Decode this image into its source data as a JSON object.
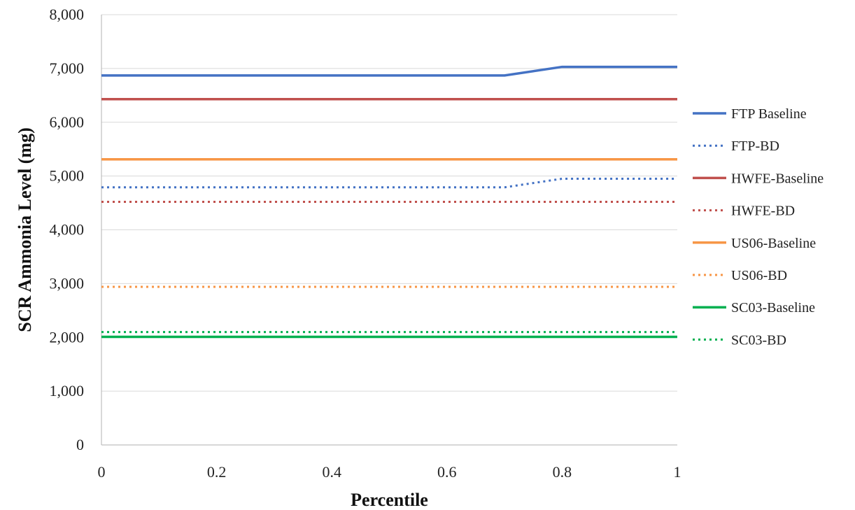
{
  "chart_data": {
    "type": "line",
    "title": "",
    "xlabel": "Percentile",
    "ylabel": "SCR Ammonia Level (mg)",
    "xlim": [
      0,
      1
    ],
    "ylim": [
      0,
      8000
    ],
    "x_ticks": [
      "0",
      "0.2",
      "0.4",
      "0.6",
      "0.8",
      "1"
    ],
    "y_ticks": [
      "0",
      "1,000",
      "2,000",
      "3,000",
      "4,000",
      "5,000",
      "6,000",
      "7,000",
      "8,000"
    ],
    "grid": "horizontal",
    "legend_position": "right",
    "series": [
      {
        "name": "FTP Baseline",
        "color": "#4472c4",
        "style": "solid",
        "x": [
          0,
          0.7,
          0.8,
          1
        ],
        "y": [
          6870,
          6870,
          7030,
          7030
        ]
      },
      {
        "name": "FTP-BD",
        "color": "#4472c4",
        "style": "dotted",
        "x": [
          0,
          0.7,
          0.8,
          1
        ],
        "y": [
          4790,
          4790,
          4950,
          4950
        ]
      },
      {
        "name": "HWFE-Baseline",
        "color": "#c0504d",
        "style": "solid",
        "x": [
          0,
          1
        ],
        "y": [
          6430,
          6430
        ]
      },
      {
        "name": "HWFE-BD",
        "color": "#c0504d",
        "style": "dotted",
        "x": [
          0,
          1
        ],
        "y": [
          4520,
          4520
        ]
      },
      {
        "name": "US06-Baseline",
        "color": "#f79646",
        "style": "solid",
        "x": [
          0,
          1
        ],
        "y": [
          5310,
          5310
        ]
      },
      {
        "name": "US06-BD",
        "color": "#f79646",
        "style": "dotted",
        "x": [
          0,
          1
        ],
        "y": [
          2940,
          2940
        ]
      },
      {
        "name": "SC03-Baseline",
        "color": "#00b050",
        "style": "solid",
        "x": [
          0,
          1
        ],
        "y": [
          2010,
          2010
        ]
      },
      {
        "name": "SC03-BD",
        "color": "#00b050",
        "style": "dotted",
        "x": [
          0,
          1
        ],
        "y": [
          2100,
          2100
        ]
      }
    ]
  }
}
